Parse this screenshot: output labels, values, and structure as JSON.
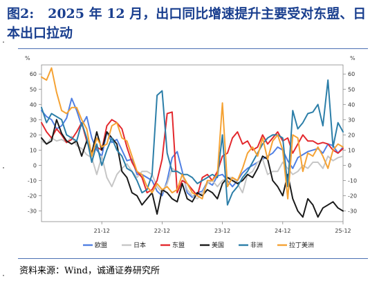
{
  "title": {
    "prefix": "图2:",
    "text": "2025 年 12 月，出口同比增速提升主要受对东盟、日本出口拉动"
  },
  "source": "资料来源：Wind，诚通证券研究所",
  "chart_data": {
    "type": "line",
    "unit": "%",
    "ylim": [
      -37,
      66
    ],
    "yticks": [
      -30,
      -20,
      -10,
      0,
      10,
      20,
      30,
      40,
      50,
      60
    ],
    "xlim": [
      "2020-12",
      "2025-12"
    ],
    "xticks": [
      "21-12",
      "22-12",
      "23-12",
      "24-12",
      "25-12"
    ],
    "grid": false,
    "legend": "bottom",
    "x": [
      "2020-12",
      "2021-01",
      "2021-02",
      "2021-03",
      "2021-04",
      "2021-05",
      "2021-06",
      "2021-07",
      "2021-08",
      "2021-09",
      "2021-10",
      "2021-11",
      "2021-12",
      "2022-01",
      "2022-02",
      "2022-03",
      "2022-04",
      "2022-05",
      "2022-06",
      "2022-07",
      "2022-08",
      "2022-09",
      "2022-10",
      "2022-11",
      "2022-12",
      "2023-01",
      "2023-02",
      "2023-03",
      "2023-04",
      "2023-05",
      "2023-06",
      "2023-07",
      "2023-08",
      "2023-09",
      "2023-10",
      "2023-11",
      "2023-12",
      "2024-01",
      "2024-02",
      "2024-03",
      "2024-04",
      "2024-05",
      "2024-06",
      "2024-07",
      "2024-08",
      "2024-09",
      "2024-10",
      "2024-11",
      "2024-12",
      "2025-01",
      "2025-02",
      "2025-03",
      "2025-04",
      "2025-05",
      "2025-06",
      "2025-07",
      "2025-08",
      "2025-09",
      "2025-10",
      "2025-11",
      "2025-12"
    ],
    "series": [
      {
        "name": "欧盟",
        "color": "#4f7fe3",
        "values": [
          36,
          32,
          30,
          24,
          26,
          31,
          44,
          36,
          26,
          32,
          18,
          10,
          6,
          22,
          15,
          17,
          10,
          3,
          4,
          -6,
          -6,
          -8,
          -10,
          -17,
          -20,
          -10,
          5,
          9,
          -4,
          -18,
          -21,
          -18,
          -17,
          -11,
          -13,
          -7,
          -6,
          -10,
          -14,
          -10,
          -5,
          -2,
          0,
          2,
          4,
          6,
          8,
          12,
          10,
          3,
          -2,
          5,
          7,
          9,
          10,
          11,
          8,
          14,
          13,
          8,
          12
        ]
      },
      {
        "name": "日本",
        "color": "#c6c6c6",
        "values": [
          16,
          14,
          18,
          16,
          17,
          15,
          19,
          13,
          11,
          7,
          5,
          -6,
          6,
          -8,
          -14,
          -6,
          -2,
          1,
          -4,
          -8,
          -4,
          -4,
          -6,
          -14,
          -18,
          -12,
          -2,
          -4,
          -6,
          -16,
          -20,
          -22,
          -18,
          -12,
          -10,
          -14,
          -10,
          -8,
          -8,
          -12,
          -18,
          -6,
          -4,
          2,
          4,
          -6,
          -4,
          -4,
          2,
          -2,
          -6,
          -4,
          0,
          -2,
          2,
          2,
          -2,
          6,
          3,
          5,
          6
        ]
      },
      {
        "name": "东盟",
        "color": "#e3282d",
        "values": [
          28,
          22,
          18,
          24,
          20,
          15,
          17,
          22,
          28,
          16,
          8,
          12,
          10,
          26,
          30,
          28,
          24,
          12,
          2,
          -4,
          -8,
          -18,
          -16,
          -10,
          4,
          34,
          35,
          -18,
          -10,
          -12,
          -16,
          -20,
          -8,
          -6,
          -10,
          -4,
          6,
          8,
          18,
          22,
          14,
          16,
          10,
          12,
          20,
          14,
          18,
          22,
          16,
          18,
          8,
          14,
          20,
          16,
          16,
          14,
          15,
          14,
          10,
          8,
          11
        ]
      },
      {
        "name": "美国",
        "color": "#1a1a1a",
        "values": [
          18,
          14,
          16,
          30,
          21,
          16,
          14,
          16,
          6,
          16,
          8,
          22,
          10,
          22,
          18,
          14,
          -4,
          -8,
          -18,
          -20,
          -26,
          -22,
          -18,
          -32,
          -16,
          -18,
          -22,
          -24,
          -12,
          -22,
          -24,
          -18,
          -20,
          -16,
          -18,
          -22,
          -12,
          -8,
          -10,
          -12,
          -10,
          -6,
          -8,
          -2,
          6,
          4,
          -10,
          -14,
          -20,
          -6,
          -22,
          -30,
          -34,
          -22,
          -26,
          -34,
          -28,
          -26,
          -24,
          -28,
          -30
        ]
      },
      {
        "name": "非洲",
        "color": "#2b7ea8",
        "values": [
          38,
          28,
          34,
          32,
          30,
          20,
          18,
          16,
          28,
          18,
          2,
          14,
          0,
          10,
          18,
          10,
          6,
          -2,
          -4,
          -10,
          -18,
          -16,
          -6,
          46,
          49,
          8,
          -4,
          -4,
          -6,
          -6,
          -8,
          -12,
          -10,
          -8,
          -6,
          -8,
          20,
          -26,
          -18,
          -14,
          -8,
          -4,
          2,
          8,
          14,
          18,
          20,
          20,
          18,
          -14,
          36,
          24,
          28,
          34,
          35,
          40,
          26,
          56,
          12,
          28,
          22
        ]
      },
      {
        "name": "拉丁美洲",
        "color": "#f5a233",
        "values": [
          58,
          56,
          64,
          48,
          36,
          34,
          38,
          38,
          30,
          24,
          6,
          18,
          12,
          14,
          26,
          28,
          18,
          16,
          6,
          -4,
          -6,
          -14,
          -18,
          -12,
          -16,
          -14,
          -18,
          -16,
          -6,
          -12,
          -18,
          -20,
          -22,
          -10,
          -10,
          -6,
          41,
          -14,
          -8,
          -10,
          -2,
          8,
          12,
          6,
          18,
          4,
          16,
          20,
          10,
          -22,
          20,
          18,
          -4,
          8,
          6,
          12,
          6,
          -2,
          10,
          14,
          12
        ]
      }
    ]
  }
}
